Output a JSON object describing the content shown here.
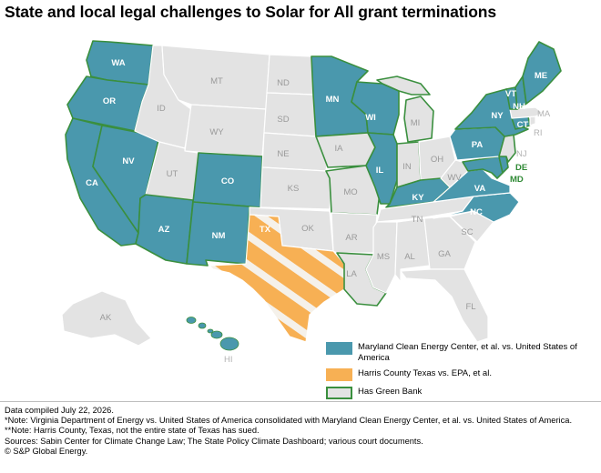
{
  "title": "State and local legal challenges to Solar for All grant terminations",
  "colors": {
    "maryland_case": "#4a98ad",
    "harris_case": "#f7b054",
    "green_bank_outline": "#3a8f3e",
    "other_state": "#e3e3e3"
  },
  "map": {
    "state_labels": {
      "WA": "WA",
      "OR": "OR",
      "CA": "CA",
      "NV": "NV",
      "ID": "ID",
      "MT": "MT",
      "WY": "WY",
      "UT": "UT",
      "AZ": "AZ",
      "CO": "CO",
      "NM": "NM",
      "ND": "ND",
      "SD": "SD",
      "NE": "NE",
      "KS": "KS",
      "OK": "OK",
      "TX": "TX",
      "MN": "MN",
      "IA": "IA",
      "MO": "MO",
      "AR": "AR",
      "LA": "LA",
      "WI": "WI",
      "IL": "IL",
      "MI": "MI",
      "IN": "IN",
      "OH": "OH",
      "KY": "KY",
      "TN": "TN",
      "MS": "MS",
      "AL": "AL",
      "GA": "GA",
      "FL": "FL",
      "SC": "SC",
      "NC": "NC",
      "VA": "VA",
      "WV": "WV",
      "PA": "PA",
      "NY": "NY",
      "VT": "VT",
      "NH": "NH",
      "ME": "ME",
      "MA": "MA",
      "RI": "RI",
      "CT": "CT",
      "NJ": "NJ",
      "DE": "DE",
      "MD": "MD",
      "AK": "AK",
      "HI": "HI"
    }
  },
  "legend": {
    "maryland_case": "Maryland Clean Energy Center, et al. vs. United States of America",
    "harris_case": "Harris County Texas vs. EPA, et al.",
    "green_bank": "Has Green Bank"
  },
  "footer": {
    "line1": "Data compiled July 22, 2026.",
    "line2": "*Note: Virginia Department of Energy vs. United States of America consolidated with Maryland Clean Energy Center, et al. vs. United States of America.",
    "line3": "**Note: Harris County, Texas, not the entire state of Texas has sued.",
    "line4": "Sources:  Sabin Center for Climate Change Law; The State Policy Climate Dashboard; various court documents.",
    "line5": "© S&P Global Energy."
  }
}
